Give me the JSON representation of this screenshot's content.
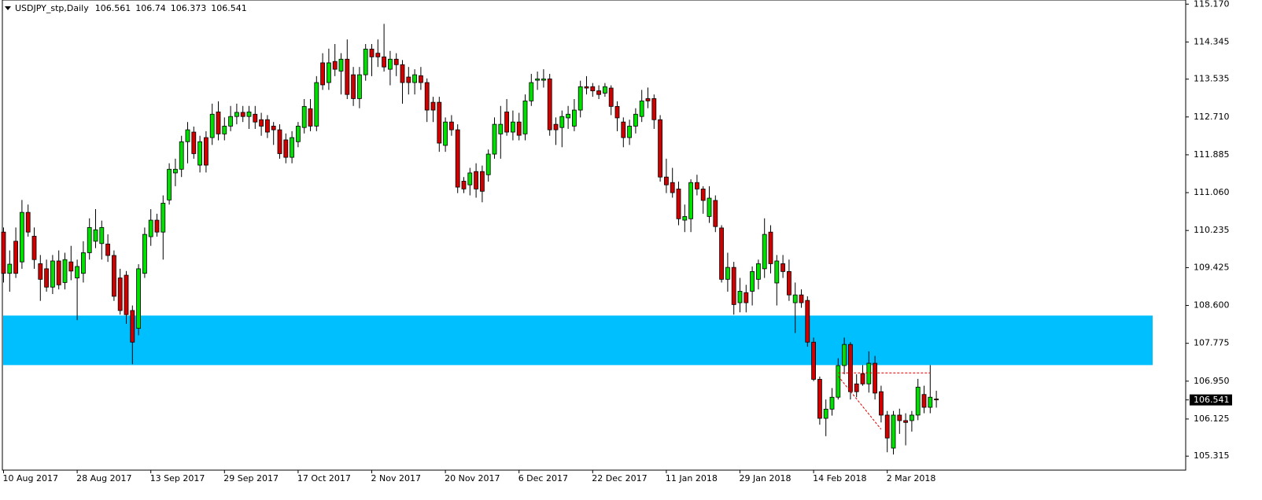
{
  "chart_data": {
    "type": "candlestick",
    "title": "USDJPY_stp,Daily",
    "categories": [
      "10 Aug 2017",
      null,
      null,
      null,
      null,
      null,
      null,
      null,
      null,
      null,
      null,
      null,
      "28 Aug 2017",
      null,
      null,
      null,
      null,
      null,
      null,
      null,
      null,
      null,
      null,
      null,
      "13 Sep 2017",
      null,
      null,
      null,
      null,
      null,
      null,
      null,
      null,
      null,
      null,
      null,
      "29 Sep 2017",
      null,
      null,
      null,
      null,
      null,
      null,
      null,
      null,
      null,
      null,
      null,
      "17 Oct 2017",
      null,
      null,
      null,
      null,
      null,
      null,
      null,
      null,
      null,
      null,
      null,
      "2 Nov 2017",
      null,
      null,
      null,
      null,
      null,
      null,
      null,
      null,
      null,
      null,
      null,
      "20 Nov 2017",
      null,
      null,
      null,
      null,
      null,
      null,
      null,
      null,
      null,
      null,
      null,
      "6 Dec 2017",
      null,
      null,
      null,
      null,
      null,
      null,
      null,
      null,
      null,
      null,
      null,
      "22 Dec 2017",
      null,
      null,
      null,
      null,
      null,
      null,
      null,
      null,
      null,
      null,
      null,
      "11 Jan 2018",
      null,
      null,
      null,
      null,
      null,
      null,
      null,
      null,
      null,
      null,
      null,
      "29 Jan 2018",
      null,
      null,
      null,
      null,
      null,
      null,
      null,
      null,
      null,
      null,
      null,
      "14 Feb 2018",
      null,
      null,
      null,
      null,
      null,
      null,
      null,
      null,
      null,
      null,
      null,
      "2 Mar 2018",
      null,
      null,
      null,
      null,
      null,
      null,
      null,
      null
    ],
    "open": [
      110.2,
      109.3,
      110.0,
      109.55,
      110.63,
      110.11,
      109.51,
      109.4,
      109.0,
      109.57,
      109.1,
      109.55,
      109.2,
      109.3,
      109.75,
      110.0,
      109.95,
      109.94,
      109.69,
      109.2,
      109.26,
      108.49,
      108.1,
      109.3,
      110.1,
      110.46,
      110.2,
      110.9,
      111.49,
      111.57,
      112.17,
      112.38,
      111.66,
      112.26,
      112.26,
      112.82,
      112.34,
      112.51,
      112.72,
      112.81,
      112.72,
      112.77,
      112.65,
      112.65,
      112.51,
      112.43,
      112.21,
      111.83,
      112.17,
      112.48,
      112.89,
      112.51,
      113.89,
      113.46,
      113.92,
      113.71,
      113.97,
      113.63,
      113.11,
      113.63,
      114.19,
      114.1,
      114.02,
      113.75,
      113.97,
      113.85,
      113.58,
      113.46,
      113.61,
      113.46,
      113.03,
      113.03,
      112.09,
      112.6,
      112.43,
      111.31,
      111.23,
      111.52,
      111.52,
      111.45,
      111.9,
      112.34,
      112.82,
      112.38,
      112.6,
      112.34,
      113.06,
      113.51,
      113.51,
      113.54,
      112.55,
      112.48,
      112.69,
      112.51,
      112.86,
      113.37,
      113.37,
      113.28,
      113.23,
      113.34,
      112.94,
      112.6,
      112.26,
      112.51,
      112.72,
      113.11,
      113.11,
      112.65,
      111.4,
      111.28,
      111.14,
      110.46,
      110.49,
      111.28,
      111.14,
      110.54,
      110.89,
      110.29,
      109.17,
      109.43,
      108.66,
      108.88,
      108.91,
      109.17,
      109.4,
      110.2,
      109.09,
      109.51,
      109.34,
      108.66,
      108.83,
      108.71,
      107.8,
      106.99,
      106.14,
      106.34,
      106.6,
      107.29,
      107.75,
      106.89,
      107.11,
      106.89,
      107.34,
      106.72,
      106.21,
      105.49,
      106.21,
      106.09,
      106.09,
      106.21,
      106.66,
      106.38,
      106.561
    ],
    "high": [
      110.3,
      109.8,
      110.3,
      110.9,
      110.8,
      110.3,
      109.7,
      109.6,
      109.7,
      109.8,
      109.75,
      109.9,
      109.6,
      110.0,
      110.5,
      110.7,
      110.45,
      110.15,
      109.8,
      109.4,
      109.35,
      108.6,
      109.5,
      110.3,
      110.7,
      110.6,
      111.0,
      111.7,
      111.8,
      112.3,
      112.6,
      112.5,
      112.3,
      112.4,
      113.0,
      113.05,
      112.7,
      112.95,
      113.0,
      112.95,
      112.95,
      112.95,
      112.8,
      112.75,
      112.6,
      112.55,
      112.35,
      112.4,
      112.6,
      113.1,
      113.1,
      113.6,
      114.1,
      114.2,
      114.3,
      114.1,
      114.4,
      113.8,
      113.8,
      114.3,
      114.3,
      114.4,
      114.74,
      114.15,
      114.1,
      113.95,
      113.8,
      113.75,
      113.8,
      113.55,
      113.15,
      113.15,
      112.7,
      112.75,
      112.55,
      111.4,
      111.6,
      111.7,
      111.65,
      112.0,
      112.7,
      112.95,
      113.1,
      112.85,
      112.8,
      113.2,
      113.65,
      113.7,
      113.75,
      113.65,
      112.7,
      112.85,
      112.95,
      113.1,
      113.5,
      113.6,
      113.45,
      113.4,
      113.45,
      113.4,
      113.05,
      112.7,
      112.65,
      112.9,
      113.3,
      113.35,
      113.2,
      112.75,
      111.8,
      111.6,
      111.3,
      110.8,
      111.35,
      111.45,
      111.2,
      111.2,
      111.0,
      110.35,
      109.75,
      109.55,
      109.2,
      109.05,
      109.45,
      109.6,
      110.5,
      110.35,
      109.7,
      109.7,
      109.6,
      109.1,
      108.95,
      108.8,
      107.9,
      107.05,
      106.55,
      106.8,
      107.45,
      107.9,
      107.8,
      107.1,
      107.3,
      107.6,
      107.5,
      106.85,
      106.3,
      106.3,
      106.35,
      106.25,
      106.3,
      107.0,
      106.85,
      107.3,
      106.74
    ],
    "low": [
      109.1,
      108.9,
      109.2,
      109.4,
      110.1,
      109.4,
      108.7,
      108.9,
      108.85,
      108.95,
      108.95,
      109.15,
      108.28,
      109.1,
      109.6,
      109.85,
      109.6,
      109.55,
      108.7,
      108.4,
      108.2,
      107.32,
      107.95,
      109.2,
      109.9,
      110.1,
      109.6,
      110.8,
      111.2,
      111.4,
      111.7,
      111.8,
      111.5,
      111.5,
      112.1,
      112.2,
      112.2,
      112.4,
      112.55,
      112.6,
      112.45,
      112.45,
      112.3,
      112.25,
      112.1,
      111.8,
      111.7,
      111.7,
      112.05,
      112.35,
      112.4,
      112.4,
      113.3,
      113.3,
      113.6,
      113.2,
      113.1,
      112.95,
      112.9,
      113.5,
      113.6,
      113.8,
      113.7,
      113.4,
      113.6,
      113.0,
      113.2,
      113.2,
      113.3,
      112.6,
      112.6,
      111.95,
      111.95,
      112.3,
      111.05,
      111.05,
      111.0,
      110.95,
      110.85,
      111.3,
      111.8,
      111.8,
      112.3,
      112.2,
      112.2,
      112.2,
      112.95,
      113.3,
      113.35,
      112.3,
      112.1,
      112.05,
      112.45,
      112.4,
      112.7,
      113.2,
      113.15,
      113.1,
      113.15,
      112.75,
      112.4,
      112.05,
      112.1,
      112.35,
      112.6,
      112.9,
      112.45,
      111.3,
      111.05,
      110.95,
      110.35,
      110.2,
      110.2,
      111.0,
      110.6,
      110.4,
      110.2,
      109.1,
      108.9,
      108.4,
      108.45,
      108.45,
      108.6,
      108.95,
      109.2,
      109.3,
      108.6,
      109.2,
      108.7,
      108.0,
      108.55,
      107.7,
      106.95,
      106.0,
      105.75,
      106.2,
      106.55,
      107.1,
      106.55,
      106.6,
      106.85,
      106.7,
      106.55,
      106.05,
      105.4,
      105.35,
      105.8,
      105.55,
      105.85,
      106.1,
      106.25,
      106.25,
      106.373
    ],
    "close": [
      109.3,
      109.5,
      109.3,
      110.63,
      110.2,
      109.6,
      109.17,
      109.0,
      109.57,
      109.05,
      109.6,
      109.35,
      109.45,
      109.75,
      110.3,
      110.25,
      110.3,
      109.69,
      108.8,
      108.49,
      108.4,
      107.8,
      109.4,
      110.15,
      110.46,
      110.2,
      110.83,
      111.57,
      111.57,
      112.17,
      112.43,
      111.91,
      112.17,
      111.66,
      112.77,
      112.34,
      112.51,
      112.72,
      112.81,
      112.72,
      112.82,
      112.6,
      112.51,
      112.38,
      112.43,
      111.91,
      111.83,
      112.26,
      112.51,
      112.94,
      112.51,
      113.46,
      113.41,
      113.89,
      113.75,
      113.97,
      113.2,
      113.11,
      113.63,
      114.19,
      114.02,
      114.02,
      113.8,
      113.97,
      113.85,
      113.46,
      113.46,
      113.63,
      113.46,
      112.86,
      112.86,
      112.14,
      112.6,
      112.43,
      111.18,
      111.14,
      111.49,
      111.14,
      111.09,
      111.9,
      112.55,
      112.55,
      112.38,
      112.6,
      112.31,
      113.06,
      113.46,
      113.54,
      113.54,
      112.43,
      112.43,
      112.72,
      112.77,
      112.86,
      113.37,
      113.34,
      113.28,
      113.2,
      113.37,
      112.94,
      112.69,
      112.26,
      112.51,
      112.77,
      113.06,
      113.06,
      112.65,
      111.4,
      111.23,
      111.06,
      110.49,
      110.54,
      111.28,
      111.14,
      110.89,
      110.94,
      110.32,
      109.17,
      109.43,
      108.62,
      108.91,
      108.66,
      109.34,
      109.51,
      110.15,
      109.51,
      109.57,
      109.34,
      108.83,
      108.83,
      108.66,
      107.8,
      106.99,
      106.14,
      106.34,
      106.6,
      107.29,
      107.75,
      106.72,
      106.72,
      106.89,
      107.34,
      106.69,
      106.21,
      105.71,
      106.21,
      106.09,
      106.05,
      106.21,
      106.82,
      106.38,
      106.6,
      106.541
    ],
    "up_color": "#00e000",
    "down_color": "#d00000",
    "ylim": [
      105.01,
      115.26
    ],
    "yticks": [
      {
        "value": 115.17,
        "label": "115.170"
      },
      114.345,
      113.535,
      {
        "value": 112.71,
        "label": "112.710"
      },
      111.885,
      {
        "value": 111.06,
        "label": "111.060"
      },
      110.235,
      109.425,
      {
        "value": 108.6,
        "label": "108.600"
      },
      107.775,
      {
        "value": 106.95,
        "label": "106.950"
      },
      106.125,
      105.315
    ],
    "grid": false,
    "zones": [
      {
        "from": 107.3,
        "to": 108.38,
        "color": "#00bfff"
      }
    ],
    "trendlines": [
      {
        "x": [
          136,
          151
        ],
        "y": [
          107.13,
          107.13
        ],
        "color": "#e00000"
      },
      {
        "x": [
          136,
          143
        ],
        "y": [
          107.06,
          105.9
        ],
        "color": "#e00000"
      }
    ]
  }
}
